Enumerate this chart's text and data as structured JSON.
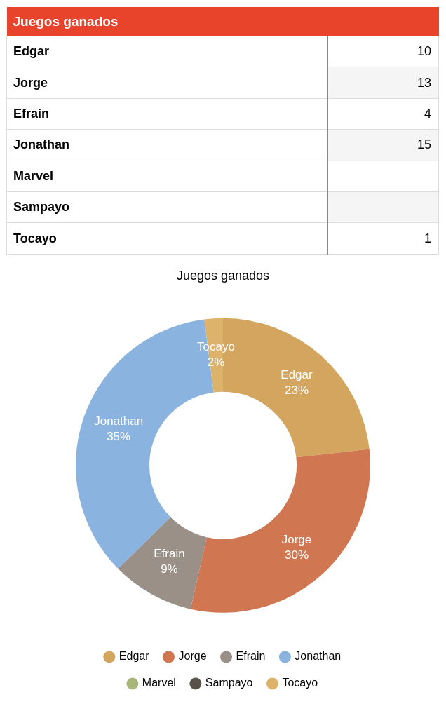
{
  "chart_data": [
    {
      "type": "other",
      "title": "Juegos ganados",
      "categories": [
        "Edgar",
        "Jorge",
        "Efrain",
        "Jonathan",
        "Marvel",
        "Sampayo",
        "Tocayo"
      ],
      "values": [
        10,
        13,
        4,
        15,
        null,
        null,
        1
      ],
      "data_labels": true
    },
    {
      "type": "donut",
      "title": "Juegos ganados",
      "categories": [
        "Edgar",
        "Jorge",
        "Efrain",
        "Jonathan",
        "Marvel",
        "Sampayo",
        "Tocayo"
      ],
      "values": [
        23,
        30,
        9,
        35,
        null,
        null,
        2
      ],
      "value_labels": [
        "23%",
        "30%",
        "9%",
        "35%",
        null,
        null,
        "2%"
      ],
      "colors": [
        "#d4a55e",
        "#d07651",
        "#9a9087",
        "#8ab3df",
        "#a9b67a",
        "#57524a",
        "#ddb36b"
      ],
      "legend": "bottom"
    }
  ]
}
